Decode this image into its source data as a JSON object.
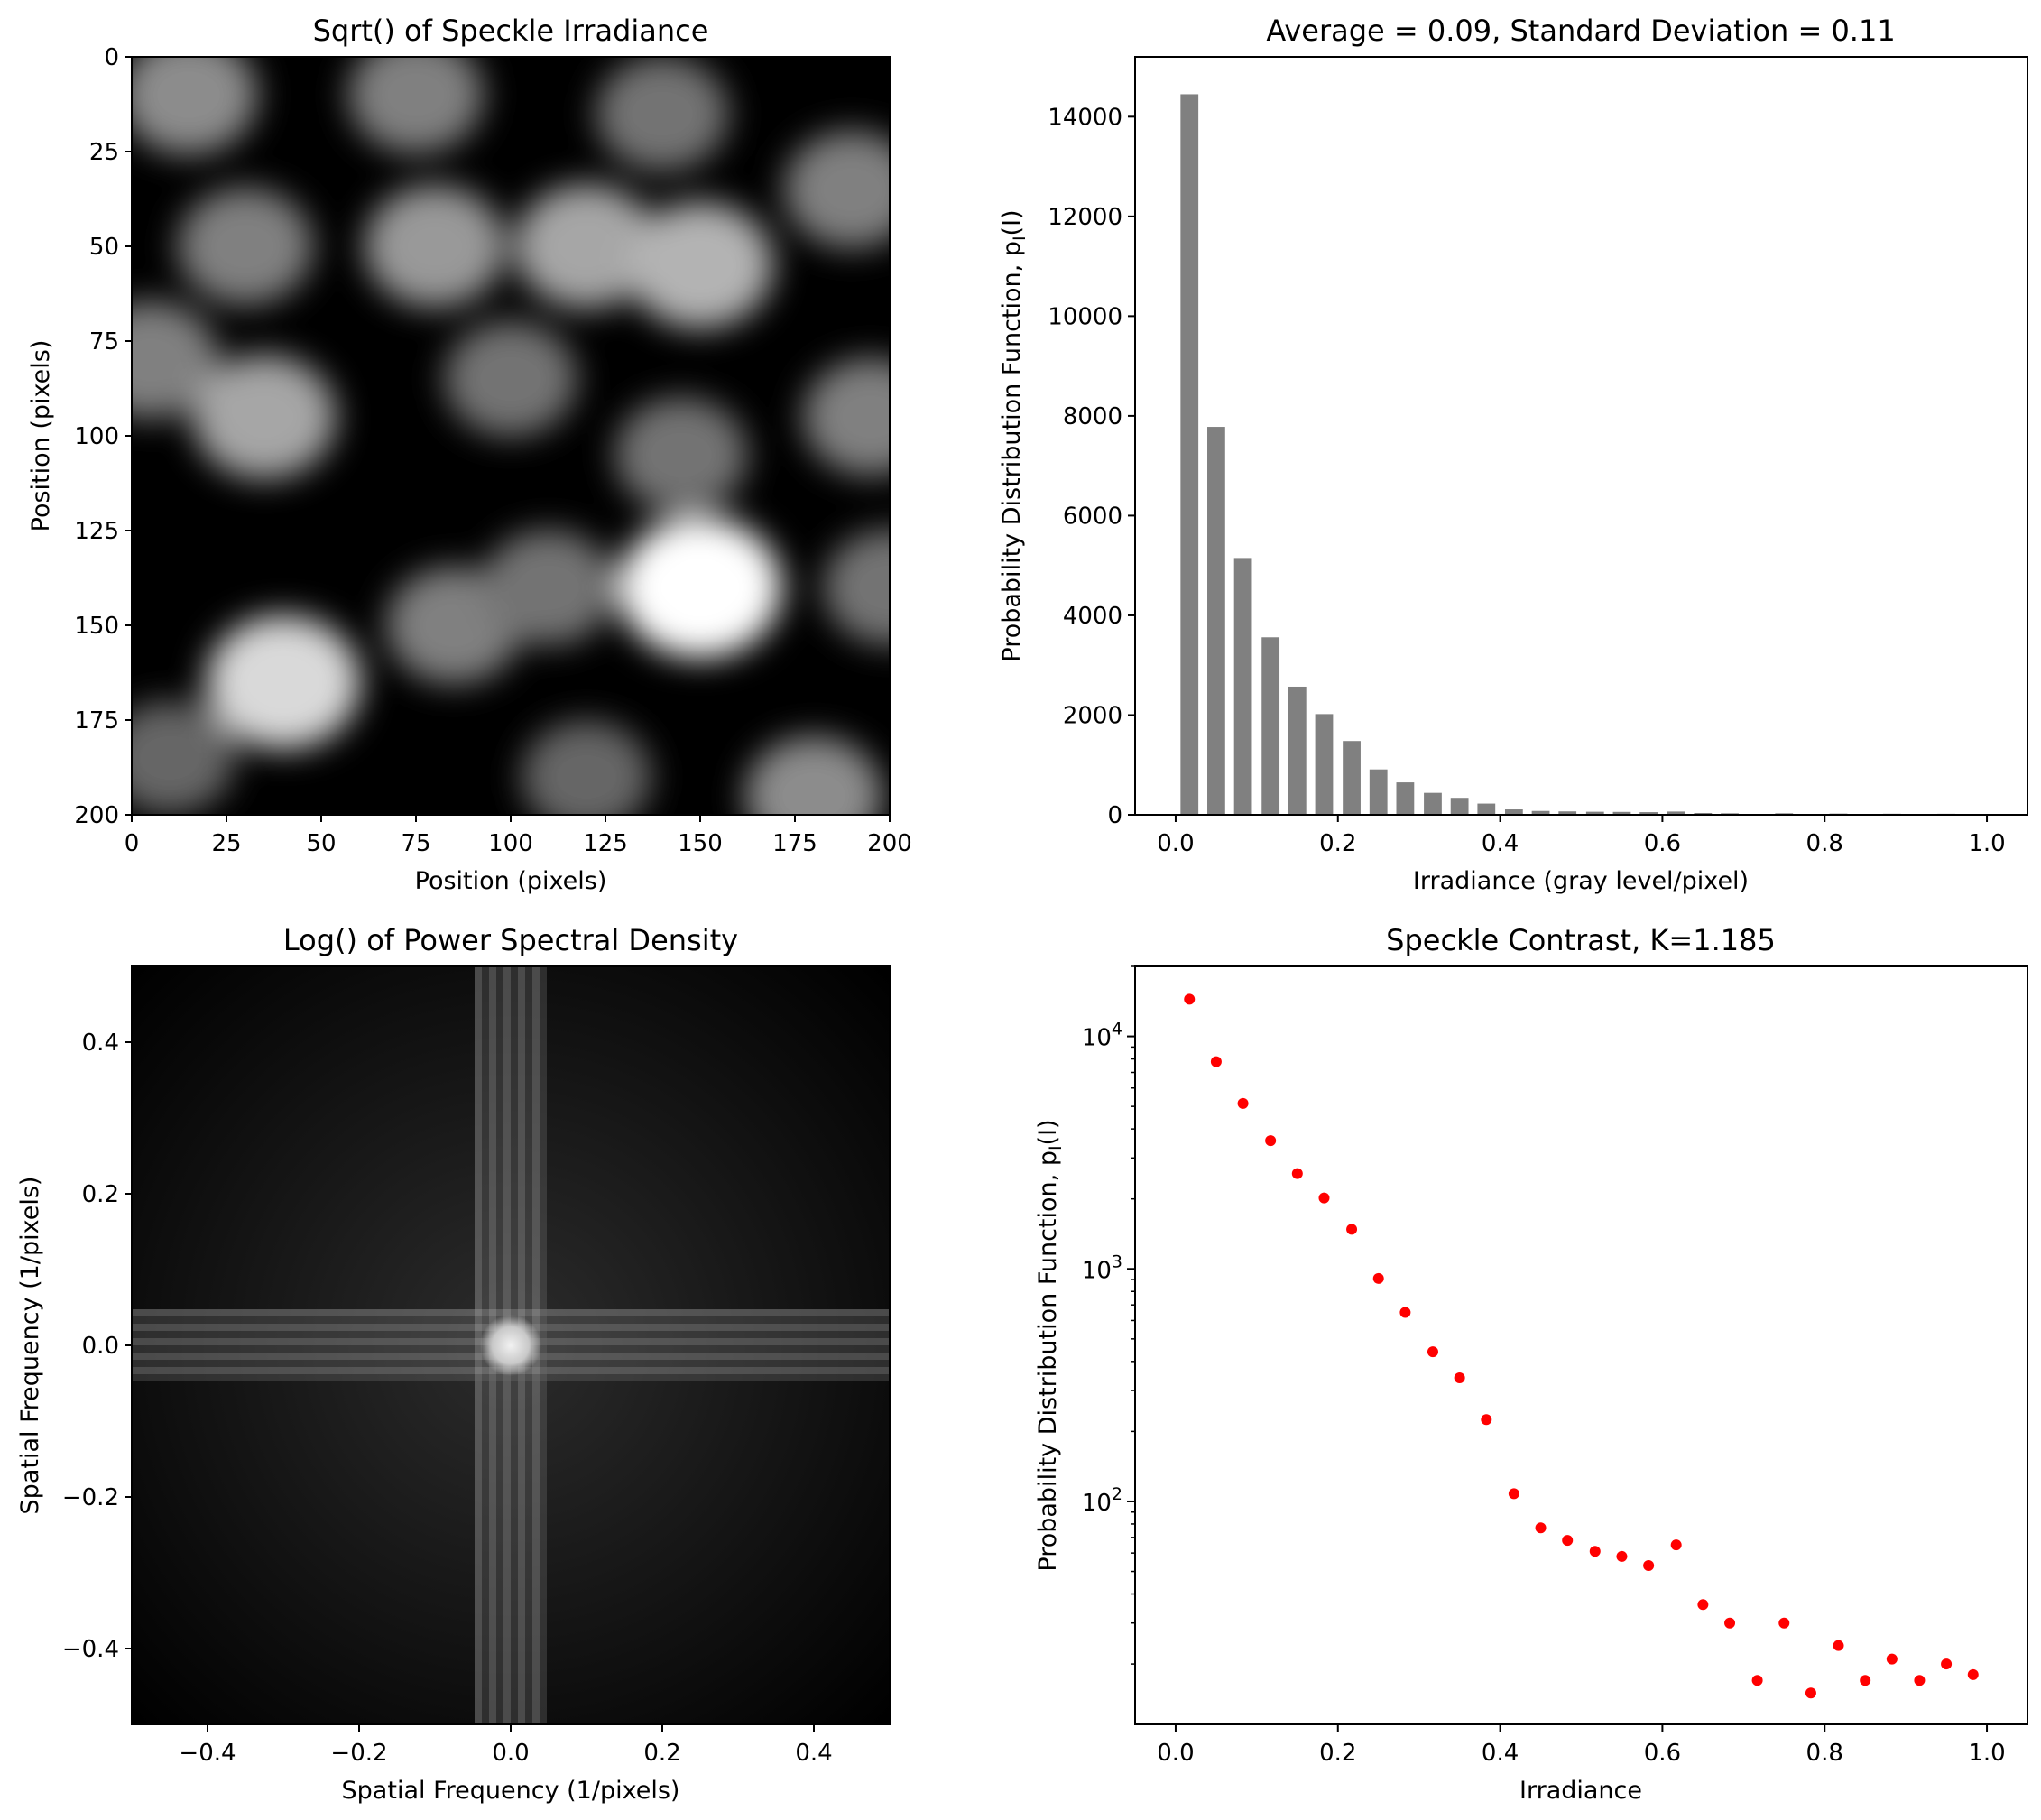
{
  "figure": {
    "panels": [
      {
        "title": "Sqrt() of Speckle Irradiance",
        "xlabel": "Position (pixels)",
        "ylabel": "Position (pixels)",
        "xticks": [
          "0",
          "25",
          "50",
          "75",
          "100",
          "125",
          "150",
          "175",
          "200"
        ],
        "yticks": [
          "0",
          "25",
          "50",
          "75",
          "100",
          "125",
          "150",
          "175",
          "200"
        ]
      },
      {
        "title": "Average = 0.09, Standard Deviation = 0.11",
        "xlabel": "Irradiance (gray level/pixel)",
        "ylabel": "Probability Distribution Function, p",
        "ylabel_sub": "I",
        "ylabel_arg": "(I)",
        "xticks": [
          "0.0",
          "0.2",
          "0.4",
          "0.6",
          "0.8",
          "1.0"
        ],
        "yticks": [
          "0",
          "2000",
          "4000",
          "6000",
          "8000",
          "10000",
          "12000",
          "14000"
        ]
      },
      {
        "title": "Log() of Power Spectral Density",
        "xlabel": "Spatial Frequency (1/pixels)",
        "ylabel": "Spatial Frequency (1/pixels)",
        "xticks": [
          "−0.4",
          "−0.2",
          "0.0",
          "0.2",
          "0.4"
        ],
        "yticks": [
          "0.4",
          "0.2",
          "0.0",
          "−0.2",
          "−0.4"
        ]
      },
      {
        "title": "Speckle Contrast, K=1.185",
        "xlabel": "Irradiance",
        "ylabel": "Probability Distribution Function, p",
        "ylabel_sub": "I",
        "ylabel_arg": "(I)",
        "xticks": [
          "0.0",
          "0.2",
          "0.4",
          "0.6",
          "0.8",
          "1.0"
        ],
        "yticks_base": "10",
        "yticks_exp": [
          "4",
          "3",
          "2"
        ]
      }
    ]
  },
  "chart_data": [
    {
      "type": "heatmap",
      "title": "Sqrt() of Speckle Irradiance",
      "xlabel": "Position (pixels)",
      "ylabel": "Position (pixels)",
      "xlim": [
        0,
        200
      ],
      "ylim": [
        200,
        0
      ],
      "colormap": "gray",
      "bright_spots": [
        {
          "x": 15,
          "y": 10,
          "level": 0.55
        },
        {
          "x": 75,
          "y": 10,
          "level": 0.5
        },
        {
          "x": 140,
          "y": 15,
          "level": 0.45
        },
        {
          "x": 190,
          "y": 35,
          "level": 0.5
        },
        {
          "x": 30,
          "y": 50,
          "level": 0.5
        },
        {
          "x": 80,
          "y": 50,
          "level": 0.6
        },
        {
          "x": 120,
          "y": 50,
          "level": 0.65
        },
        {
          "x": 150,
          "y": 55,
          "level": 0.7
        },
        {
          "x": 5,
          "y": 80,
          "level": 0.5
        },
        {
          "x": 35,
          "y": 95,
          "level": 0.65
        },
        {
          "x": 100,
          "y": 85,
          "level": 0.45
        },
        {
          "x": 145,
          "y": 105,
          "level": 0.45
        },
        {
          "x": 195,
          "y": 95,
          "level": 0.5
        },
        {
          "x": 150,
          "y": 140,
          "level": 1.0
        },
        {
          "x": 40,
          "y": 165,
          "level": 0.85
        },
        {
          "x": 85,
          "y": 150,
          "level": 0.5
        },
        {
          "x": 110,
          "y": 140,
          "level": 0.45
        },
        {
          "x": 200,
          "y": 140,
          "level": 0.45
        },
        {
          "x": 120,
          "y": 190,
          "level": 0.4
        },
        {
          "x": 180,
          "y": 195,
          "level": 0.55
        },
        {
          "x": 10,
          "y": 185,
          "level": 0.4
        }
      ]
    },
    {
      "type": "bar",
      "title": "Average = 0.09, Standard Deviation = 0.11",
      "xlabel": "Irradiance (gray level/pixel)",
      "ylabel": "Probability Distribution Function, p_I(I)",
      "xlim": [
        -0.05,
        1.05
      ],
      "ylim": [
        0,
        15200
      ],
      "bar_width": 0.022,
      "color": "#808080",
      "x": [
        0.017,
        0.05,
        0.083,
        0.117,
        0.15,
        0.183,
        0.217,
        0.25,
        0.283,
        0.317,
        0.35,
        0.383,
        0.417,
        0.45,
        0.483,
        0.517,
        0.55,
        0.583,
        0.617,
        0.65,
        0.683,
        0.717,
        0.75,
        0.783,
        0.817,
        0.85,
        0.883,
        0.917,
        0.95,
        0.983
      ],
      "values": [
        14450,
        7780,
        5150,
        3560,
        2570,
        2020,
        1480,
        910,
        650,
        440,
        340,
        225,
        108,
        77,
        68,
        61,
        58,
        53,
        65,
        36,
        30,
        17,
        30,
        15,
        24,
        17,
        21,
        17,
        20,
        18
      ]
    },
    {
      "type": "heatmap",
      "title": "Log() of Power Spectral Density",
      "xlabel": "Spatial Frequency (1/pixels)",
      "ylabel": "Spatial Frequency (1/pixels)",
      "xlim": [
        -0.5,
        0.5
      ],
      "ylim": [
        -0.5,
        0.5
      ],
      "colormap": "gray",
      "features": "bright central disc at (0, 0) with horizontal and vertical bands through the origin"
    },
    {
      "type": "scatter",
      "title": "Speckle Contrast, K=1.185",
      "xlabel": "Irradiance",
      "ylabel": "Probability Distribution Function, p_I(I)",
      "yscale": "log",
      "xlim": [
        -0.05,
        1.05
      ],
      "ylim": [
        11,
        20000
      ],
      "color": "#ff0000",
      "x": [
        0.017,
        0.05,
        0.083,
        0.117,
        0.15,
        0.183,
        0.217,
        0.25,
        0.283,
        0.317,
        0.35,
        0.383,
        0.417,
        0.45,
        0.483,
        0.517,
        0.55,
        0.583,
        0.617,
        0.65,
        0.683,
        0.717,
        0.75,
        0.783,
        0.817,
        0.85,
        0.883,
        0.917,
        0.95,
        0.983
      ],
      "y": [
        14450,
        7780,
        5150,
        3560,
        2570,
        2020,
        1480,
        910,
        650,
        440,
        340,
        225,
        108,
        77,
        68,
        61,
        58,
        53,
        65,
        36,
        30,
        17,
        30,
        15,
        24,
        17,
        21,
        17,
        20,
        18
      ]
    }
  ]
}
